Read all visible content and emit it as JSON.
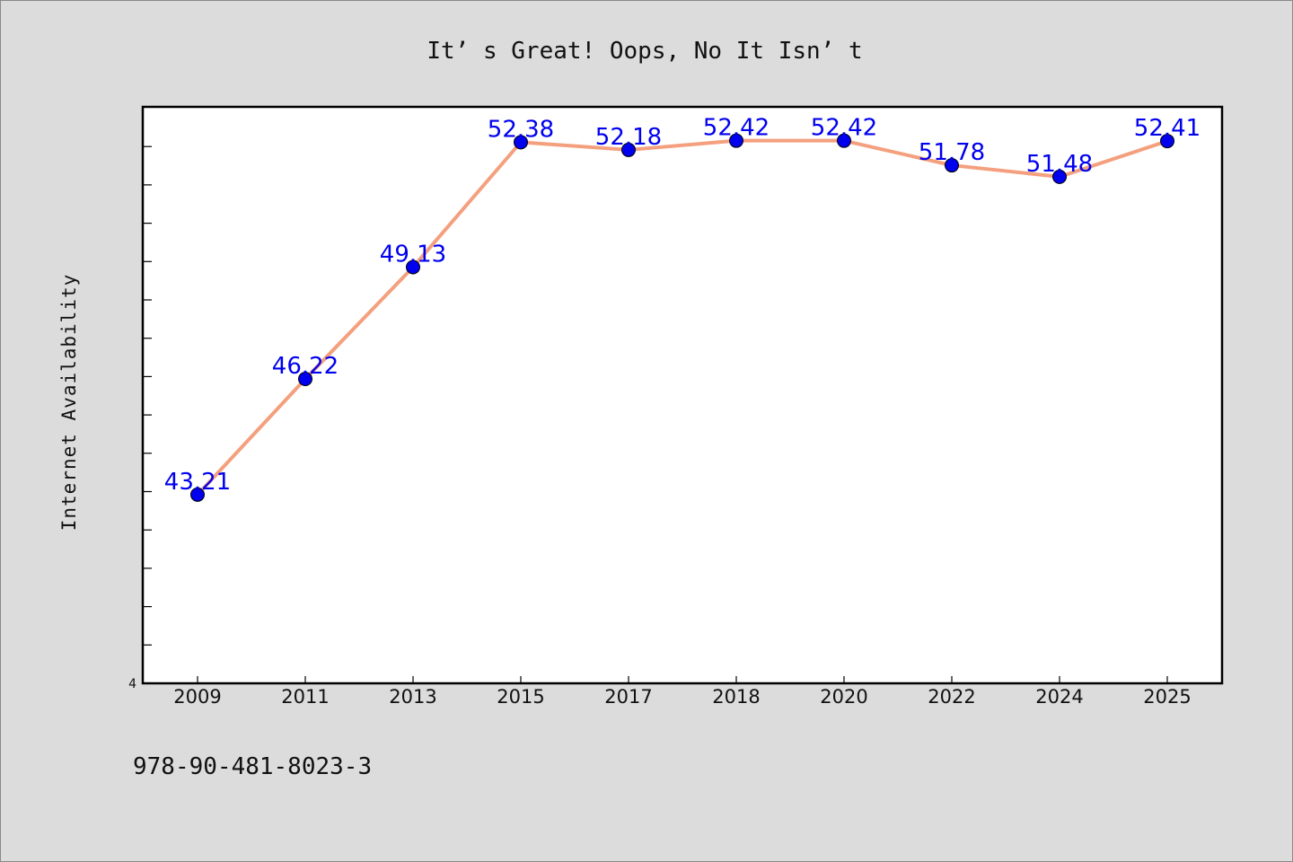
{
  "chart_data": {
    "type": "line",
    "title": "It’ s Great! Oops, No It Isn’ t",
    "ylabel": "Internet Availability",
    "xlabel": "",
    "categories": [
      "2009",
      "2011",
      "2013",
      "2015",
      "2017",
      "2018",
      "2020",
      "2022",
      "2024",
      "2025"
    ],
    "series": [
      {
        "values": [
          43.21,
          46.22,
          49.13,
          52.38,
          52.18,
          52.42,
          52.42,
          51.78,
          51.48,
          52.41
        ]
      }
    ],
    "data_labels": [
      "43.21",
      "46.22",
      "49.13",
      "52.38",
      "52.18",
      "52.42",
      "52.42",
      "51.78",
      "51.48",
      "52.41"
    ],
    "y_tick_labels": [
      "4"
    ],
    "ylim": [
      38.3,
      53.3
    ],
    "grid": false,
    "legend": "none",
    "colors": {
      "line": "#f4a07e",
      "marker": "#0000ee",
      "label": "#0000ee",
      "background": "#dcdcdc",
      "plot_bg": "#ffffff"
    }
  },
  "footer": {
    "isbn": "978-90-481-8023-3"
  }
}
